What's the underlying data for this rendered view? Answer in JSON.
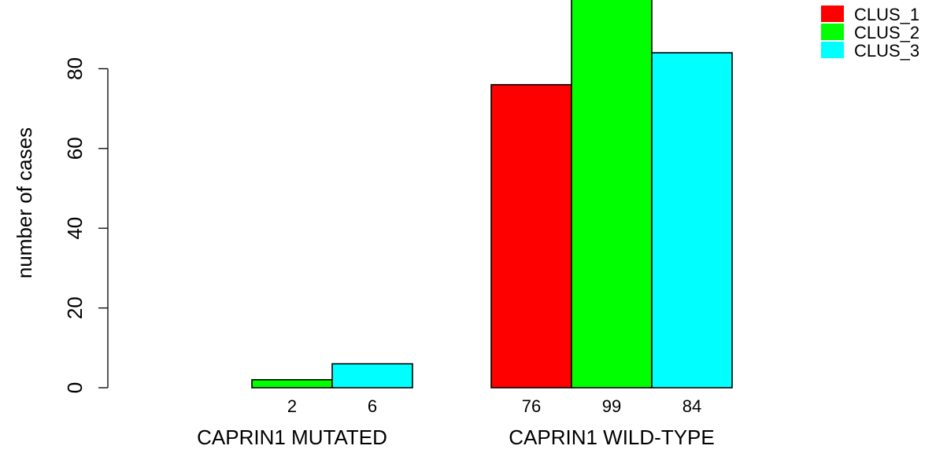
{
  "chart_data": {
    "type": "bar",
    "categories": [
      "CAPRIN1 MUTATED",
      "CAPRIN1 WILD-TYPE"
    ],
    "series": [
      {
        "name": "CLUS_1",
        "color": "#FF0000",
        "values": [
          0,
          76
        ]
      },
      {
        "name": "CLUS_2",
        "color": "#00FF00",
        "values": [
          2,
          99
        ]
      },
      {
        "name": "CLUS_3",
        "color": "#00FFFF",
        "values": [
          6,
          84
        ]
      }
    ],
    "data_labels": [
      [
        "",
        "2",
        "6"
      ],
      [
        "76",
        "99",
        "84"
      ]
    ],
    "ylabel": "number of cases",
    "yticks": [
      0,
      20,
      40,
      60,
      80
    ],
    "ylim": [
      0,
      99
    ],
    "grid": false,
    "legend_position": "top-right"
  }
}
